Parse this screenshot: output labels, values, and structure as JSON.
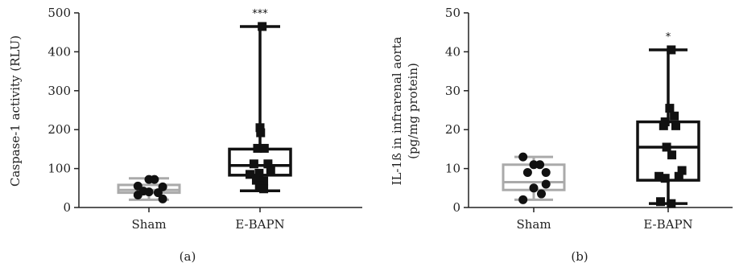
{
  "chart_data": [
    {
      "type": "box",
      "panel_label": "(a)",
      "ylabel": "Caspase-1 activity (RLU)",
      "ylim": [
        0,
        500
      ],
      "yticks": [
        0,
        100,
        200,
        300,
        400,
        500
      ],
      "categories": [
        "Sham",
        "E-BAPN"
      ],
      "groups": [
        {
          "name": "Sham",
          "color": "#aaaaaa",
          "marker": "circle",
          "box": {
            "min": 20,
            "q1": 38,
            "median": 45,
            "q3": 58,
            "max": 75
          },
          "points": [
            {
              "x": -0.36,
              "y": 55
            },
            {
              "x": -0.36,
              "y": 32
            },
            {
              "x": -0.18,
              "y": 42
            },
            {
              "x": 0.0,
              "y": 72
            },
            {
              "x": 0.0,
              "y": 40
            },
            {
              "x": 0.18,
              "y": 72
            },
            {
              "x": 0.3,
              "y": 38
            },
            {
              "x": 0.45,
              "y": 53
            },
            {
              "x": 0.45,
              "y": 22
            }
          ],
          "significance": ""
        },
        {
          "name": "E-BAPN",
          "color": "#111111",
          "marker": "square",
          "box": {
            "min": 43,
            "q1": 83,
            "median": 108,
            "q3": 150,
            "max": 465
          },
          "points": [
            {
              "x": 0.07,
              "y": 465
            },
            {
              "x": 0.0,
              "y": 205
            },
            {
              "x": 0.02,
              "y": 192
            },
            {
              "x": -0.08,
              "y": 152
            },
            {
              "x": 0.14,
              "y": 152
            },
            {
              "x": -0.2,
              "y": 112
            },
            {
              "x": 0.26,
              "y": 112
            },
            {
              "x": -0.33,
              "y": 85
            },
            {
              "x": -0.03,
              "y": 88
            },
            {
              "x": 0.35,
              "y": 95
            },
            {
              "x": -0.12,
              "y": 70
            },
            {
              "x": 0.12,
              "y": 68
            },
            {
              "x": -0.02,
              "y": 55
            },
            {
              "x": 0.12,
              "y": 48
            }
          ],
          "significance": "***"
        }
      ]
    },
    {
      "type": "box",
      "panel_label": "(b)",
      "ylabel_lines": [
        "IL-1ß in infrarenal aorta",
        "(pg/mg protein)"
      ],
      "ylim": [
        0,
        50
      ],
      "yticks": [
        0,
        10,
        20,
        30,
        40,
        50
      ],
      "categories": [
        "Sham",
        "E-BAPN"
      ],
      "groups": [
        {
          "name": "Sham",
          "color": "#aaaaaa",
          "marker": "circle",
          "box": {
            "min": 2,
            "q1": 4.5,
            "median": 6.5,
            "q3": 11,
            "max": 13
          },
          "points": [
            {
              "x": -0.35,
              "y": 13
            },
            {
              "x": -0.35,
              "y": 2
            },
            {
              "x": -0.2,
              "y": 9
            },
            {
              "x": 0.0,
              "y": 11
            },
            {
              "x": 0.0,
              "y": 5
            },
            {
              "x": 0.2,
              "y": 11
            },
            {
              "x": 0.25,
              "y": 3.5
            },
            {
              "x": 0.4,
              "y": 9
            },
            {
              "x": 0.4,
              "y": 6
            }
          ],
          "significance": ""
        },
        {
          "name": "E-BAPN",
          "color": "#111111",
          "marker": "square",
          "box": {
            "min": 1,
            "q1": 7,
            "median": 15.5,
            "q3": 22,
            "max": 40.5
          },
          "points": [
            {
              "x": 0.1,
              "y": 40.5
            },
            {
              "x": 0.05,
              "y": 25.5
            },
            {
              "x": -0.1,
              "y": 22
            },
            {
              "x": 0.2,
              "y": 23.5
            },
            {
              "x": -0.15,
              "y": 21
            },
            {
              "x": 0.25,
              "y": 21
            },
            {
              "x": -0.05,
              "y": 15.5
            },
            {
              "x": 0.12,
              "y": 13.5
            },
            {
              "x": -0.3,
              "y": 8
            },
            {
              "x": 0.45,
              "y": 9.5
            },
            {
              "x": -0.1,
              "y": 7.5
            },
            {
              "x": 0.35,
              "y": 8
            },
            {
              "x": -0.25,
              "y": 1.5
            },
            {
              "x": 0.1,
              "y": 1
            }
          ],
          "significance": "*"
        }
      ]
    }
  ]
}
